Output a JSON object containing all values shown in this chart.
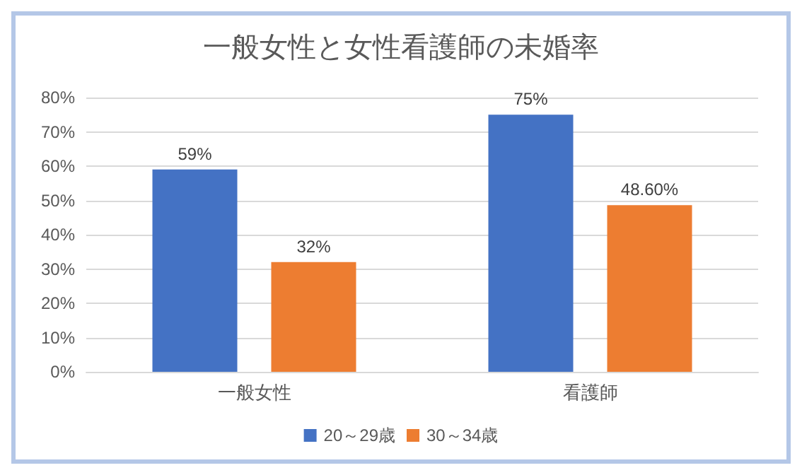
{
  "chart_data": {
    "type": "bar",
    "title": "一般女性と女性看護師の未婚率",
    "categories": [
      "一般女性",
      "看護師"
    ],
    "series": [
      {
        "name": "20～29歳",
        "color": "#4472c4",
        "values": [
          59,
          75
        ],
        "value_labels": [
          "59%",
          "75%"
        ]
      },
      {
        "name": "30～34歳",
        "color": "#ed7d31",
        "values": [
          32,
          48.6
        ],
        "value_labels": [
          "32%",
          "48.60%"
        ]
      }
    ],
    "ylim": [
      0,
      80
    ],
    "yticks": [
      {
        "value": 0,
        "label": "0%"
      },
      {
        "value": 10,
        "label": "10%"
      },
      {
        "value": 20,
        "label": "20%"
      },
      {
        "value": 30,
        "label": "30%"
      },
      {
        "value": 40,
        "label": "40%"
      },
      {
        "value": 50,
        "label": "50%"
      },
      {
        "value": 60,
        "label": "60%"
      },
      {
        "value": 70,
        "label": "70%"
      },
      {
        "value": 80,
        "label": "80%"
      }
    ],
    "grid": "y",
    "legend": "bottom"
  }
}
